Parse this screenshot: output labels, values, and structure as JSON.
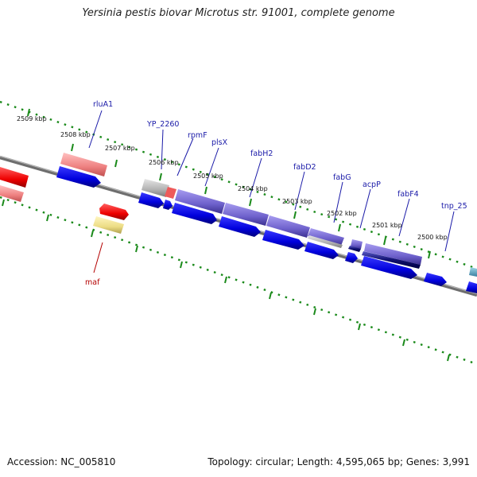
{
  "title": "Yersinia pestis biovar Microtus str. 91001, complete genome",
  "footer": {
    "accession": "Accession: NC_005810",
    "summary": "Topology: circular; Length: 4,595,065 bp; Genes: 3,991"
  },
  "kbp_labels": [
    "2509 kbp",
    "2508 kbp",
    "2507 kbp",
    "2506 kbp",
    "2505 kbp",
    "2504 kbp",
    "2503 kbp",
    "2502 kbp",
    "2501 kbp",
    "2500 kbp"
  ],
  "gene_labels": [
    "rluA1",
    "YP_2260",
    "rpmF",
    "plsX",
    "fabH2",
    "fabD2",
    "fabG",
    "acpP",
    "fabF4",
    "tnp_25",
    "maf"
  ],
  "colors": {
    "backbone": "#808080",
    "tick": "#1a8a1a",
    "cds_blue": "#0000dd",
    "feature_purple": "#7b6fd6",
    "feature_pink": "#f08a8a",
    "feature_red": "#ee0000",
    "feature_yellow": "#eee08a",
    "feature_gray": "#b8b8b8",
    "label_blue": "#1a1aa8",
    "label_red": "#b40000"
  }
}
